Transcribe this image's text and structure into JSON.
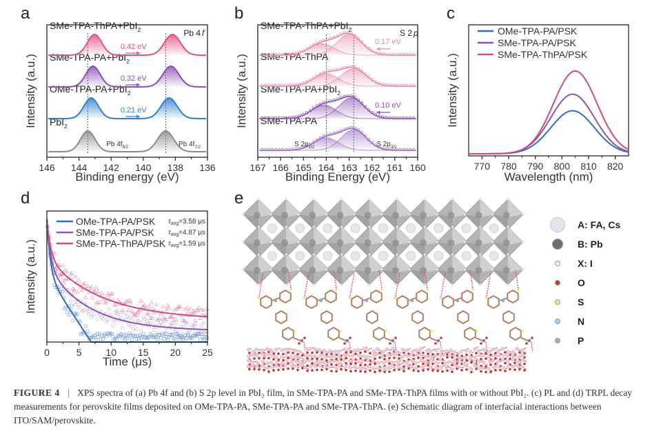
{
  "panels": {
    "a": "a",
    "b": "b",
    "c": "c",
    "d": "d",
    "e": "e"
  },
  "chart_data": [
    {
      "id": "a",
      "type": "line",
      "title": "Pb 4f",
      "xlabel": "Binding energy (eV)",
      "ylabel": "Intensity (a.u.)",
      "xlim": [
        146,
        136
      ],
      "xticks": [
        146,
        144,
        142,
        140,
        138,
        136
      ],
      "reference_lines": [
        143.45,
        138.6
      ],
      "series": [
        {
          "name": "PbI2",
          "label_main": "PbI",
          "label_sub": "2",
          "color": "#8c8c8c",
          "peaks": [
            143.45,
            138.6
          ],
          "shift": null
        },
        {
          "name": "OMe-TPA-PA+PbI2",
          "label_main": "OMe-TPA-PA+PbI",
          "label_sub": "2",
          "color": "#2f7fd0",
          "peaks": [
            143.24,
            138.39
          ],
          "shift": "0.21 eV"
        },
        {
          "name": "SMe-TPA-PA+PbI2",
          "label_main": "SMe-TPA-PA+PbI",
          "label_sub": "2",
          "color": "#8a4fb0",
          "peaks": [
            143.13,
            138.28
          ],
          "shift": "0.32 eV"
        },
        {
          "name": "SMe-TPA-ThPA+PbI2",
          "label_main": "SMe-TPA-ThPA+PbI",
          "label_sub": "2",
          "color": "#e0537e",
          "peaks": [
            143.03,
            138.18
          ],
          "shift": "0.42 eV"
        }
      ],
      "annotations": [
        {
          "text": "Pb 4f",
          "sub": "5/2"
        },
        {
          "text": "Pb 4f",
          "sub": "7/2"
        }
      ]
    },
    {
      "id": "b",
      "type": "line",
      "title": "S 2p",
      "xlabel": "Binding Energy (eV)",
      "ylabel": "Intensity (a.u.)",
      "xlim": [
        167,
        160
      ],
      "xticks": [
        167,
        166,
        165,
        164,
        163,
        162,
        161,
        160
      ],
      "reference_lines": [
        164.0,
        162.8
      ],
      "series": [
        {
          "name": "SMe-TPA-PA",
          "label_main": "SMe-TPA-PA",
          "label_sub": "",
          "color": "#9a6cc4",
          "peaks": [
            164.0,
            162.8
          ],
          "amps": [
            0.6,
            1.0
          ],
          "shift": null
        },
        {
          "name": "SMe-TPA-PA+PbI2",
          "label_main": "SMe-TPA-PA+PbI",
          "label_sub": "2",
          "color": "#8a4fb0",
          "peaks": [
            164.1,
            162.9
          ],
          "amps": [
            0.65,
            1.0
          ],
          "shift": "0.10 eV"
        },
        {
          "name": "SMe-TPA-ThPA",
          "label_main": "SMe-TPA-ThPA",
          "label_sub": "",
          "color": "#e889a6",
          "peaks": [
            164.0,
            162.8
          ],
          "amps": [
            0.6,
            0.85
          ],
          "shift": null
        },
        {
          "name": "SMe-TPA-ThPA+PbI2",
          "label_main": "SMe-TPA-ThPA+PbI",
          "label_sub": "2",
          "color": "#e889a6",
          "peaks": [
            164.2,
            163.0
          ],
          "amps": [
            0.55,
            1.0
          ],
          "shift": "0.17 eV"
        }
      ],
      "annotations": [
        {
          "text": "S 2p",
          "sub": "1/2"
        },
        {
          "text": "S 2p",
          "sub": "3/2"
        }
      ]
    },
    {
      "id": "c",
      "type": "line",
      "title": "",
      "xlabel": "Wavelength (nm)",
      "ylabel": "Intensity (a.u.)",
      "xlim": [
        765,
        825
      ],
      "xticks": [
        770,
        780,
        790,
        800,
        810,
        820
      ],
      "legend": "top-left",
      "series": [
        {
          "name": "OMe-TPA-PA/PSK",
          "color": "#2f6fc0",
          "peak_x": 804,
          "peak_rel": 0.52
        },
        {
          "name": "SMe-TPA-PA/PSK",
          "color": "#8a55b0",
          "peak_x": 804,
          "peak_rel": 0.72
        },
        {
          "name": "SMe-TPA-ThPA/PSK",
          "color": "#d24a78",
          "peak_x": 805,
          "peak_rel": 1.0
        }
      ]
    },
    {
      "id": "d",
      "type": "scatter",
      "title": "",
      "xlabel": "Time (μs)",
      "ylabel": "Intensity (a.u.)",
      "xlim": [
        0,
        25
      ],
      "xticks": [
        0,
        5,
        10,
        15,
        20,
        25
      ],
      "legend": "top-right",
      "series": [
        {
          "name": "OMe-TPA-PA/PSK",
          "tau": "τavg=3.58 μs",
          "tau_sym": "τ",
          "tau_sub": "avg",
          "tau_val": "=3.58 μs",
          "color": "#2f6fc0",
          "marker": "square"
        },
        {
          "name": "SMe-TPA-PA/PSK",
          "tau": "τavg=4.87 μs",
          "tau_sym": "τ",
          "tau_sub": "avg",
          "tau_val": "=4.87 μs",
          "color": "#8a55b0",
          "marker": "circle"
        },
        {
          "name": "SMe-TPA-ThPA/PSK",
          "tau": "τavg=1.59 μs",
          "tau_sym": "τ",
          "tau_sub": "avg",
          "tau_val": "=1.59 μs",
          "color": "#d24a78",
          "marker": "triangle"
        }
      ]
    }
  ],
  "schematic": {
    "legend": [
      {
        "label": "A: FA, Cs",
        "color": "#e4e4ee",
        "size": "large"
      },
      {
        "label": "B: Pb",
        "color": "#6e6e6e",
        "size": "medium"
      },
      {
        "label": "X: I",
        "color": "#f4f4f4",
        "size": "small"
      },
      {
        "label": "O",
        "color": "#c8352c",
        "size": "small"
      },
      {
        "label": "S",
        "color": "#e8e88a",
        "size": "small"
      },
      {
        "label": "N",
        "color": "#a8d4e8",
        "size": "small"
      },
      {
        "label": "P",
        "color": "#b4a4cc",
        "size": "small"
      }
    ]
  },
  "caption": {
    "figure": "FIGURE  4",
    "separator": "|",
    "text": "XPS spectra of (a) Pb 4f and (b) S 2p level in PbI₂ film, in SMe-TPA-PA and SMe-TPA-ThPA films with or without PbI₂. (c) PL and (d) TRPL decay measurements for perovskite films deposited on OMe-TPA-PA, SMe-TPA-PA and SMe-TPA-ThPA. (e) Schematic diagram of interfacial interactions between ITO/SAM/perovskite."
  }
}
